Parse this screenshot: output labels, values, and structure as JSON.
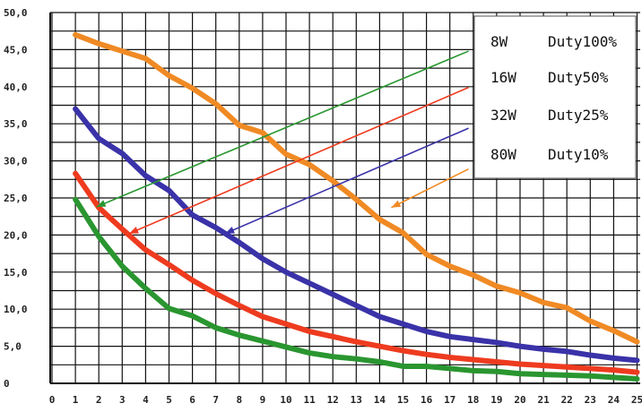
{
  "chart_data": {
    "type": "line",
    "title": "",
    "xlabel": "",
    "ylabel": "",
    "xlim": [
      0,
      25
    ],
    "ylim": [
      0,
      50
    ],
    "grid": true,
    "legend_position": "top-right",
    "x_ticks": [
      "0",
      "1",
      "2",
      "3",
      "4",
      "5",
      "6",
      "7",
      "8",
      "9",
      "10",
      "11",
      "12",
      "13",
      "14",
      "15",
      "16",
      "17",
      "18",
      "19",
      "20",
      "21",
      "22",
      "23",
      "24",
      "25"
    ],
    "y_ticks": [
      "0",
      "5,0",
      "10,0",
      "15,0",
      "20,0",
      "25,0",
      "30,0",
      "35,0",
      "40,0",
      "45,0",
      "50,0"
    ],
    "x": [
      1,
      2,
      3,
      4,
      5,
      6,
      7,
      8,
      9,
      10,
      11,
      12,
      13,
      14,
      15,
      16,
      17,
      18,
      19,
      20,
      21,
      22,
      23,
      24,
      25
    ],
    "series": [
      {
        "name": "8W",
        "duty": "Duty100%",
        "color": "#f08a24",
        "values": [
          47.0,
          45.8,
          44.8,
          43.8,
          41.5,
          39.8,
          37.7,
          34.8,
          33.8,
          30.9,
          29.5,
          27.3,
          24.8,
          22.1,
          20.3,
          17.4,
          15.8,
          14.6,
          13.1,
          12.2,
          10.9,
          10.2,
          8.4,
          7.1,
          5.6
        ]
      },
      {
        "name": "16W",
        "duty": "Duty50%",
        "color": "#ee3b1f",
        "values": [
          28.3,
          23.7,
          20.8,
          18.0,
          16.0,
          13.9,
          12.1,
          10.5,
          9.0,
          8.0,
          7.0,
          6.3,
          5.6,
          5.0,
          4.4,
          3.9,
          3.5,
          3.2,
          2.9,
          2.6,
          2.4,
          2.2,
          2.0,
          1.8,
          1.5
        ]
      },
      {
        "name": "32W",
        "duty": "Duty25%",
        "color": "#3a32a8",
        "values": [
          37.0,
          33.0,
          31.0,
          28.0,
          26.0,
          22.7,
          21.0,
          19.0,
          16.8,
          15.0,
          13.5,
          12.0,
          10.5,
          9.0,
          8.0,
          7.0,
          6.3,
          5.9,
          5.5,
          5.0,
          4.6,
          4.3,
          3.8,
          3.4,
          3.1
        ]
      },
      {
        "name": "80W",
        "duty": "Duty10%",
        "color": "#2a9630",
        "values": [
          24.8,
          19.8,
          15.8,
          12.8,
          10.1,
          9.1,
          7.5,
          6.5,
          5.7,
          4.9,
          4.1,
          3.6,
          3.3,
          2.9,
          2.3,
          2.3,
          2.0,
          1.7,
          1.6,
          1.3,
          1.2,
          1.1,
          1.0,
          0.8,
          0.6
        ]
      }
    ],
    "annotations": [
      {
        "series": "8W",
        "color": "#f08a24",
        "from": [
          17.8,
          28.9
        ],
        "to": [
          14.5,
          23.7
        ]
      },
      {
        "series": "16W",
        "color": "#ee3b1f",
        "from": [
          17.8,
          39.9
        ],
        "to": [
          3.3,
          20.2
        ]
      },
      {
        "series": "32W",
        "color": "#3a32a8",
        "from": [
          17.8,
          34.4
        ],
        "to": [
          7.4,
          20.2
        ]
      },
      {
        "series": "80W",
        "color": "#2a9630",
        "from": [
          17.8,
          44.8
        ],
        "to": [
          1.9,
          23.8
        ]
      }
    ]
  }
}
